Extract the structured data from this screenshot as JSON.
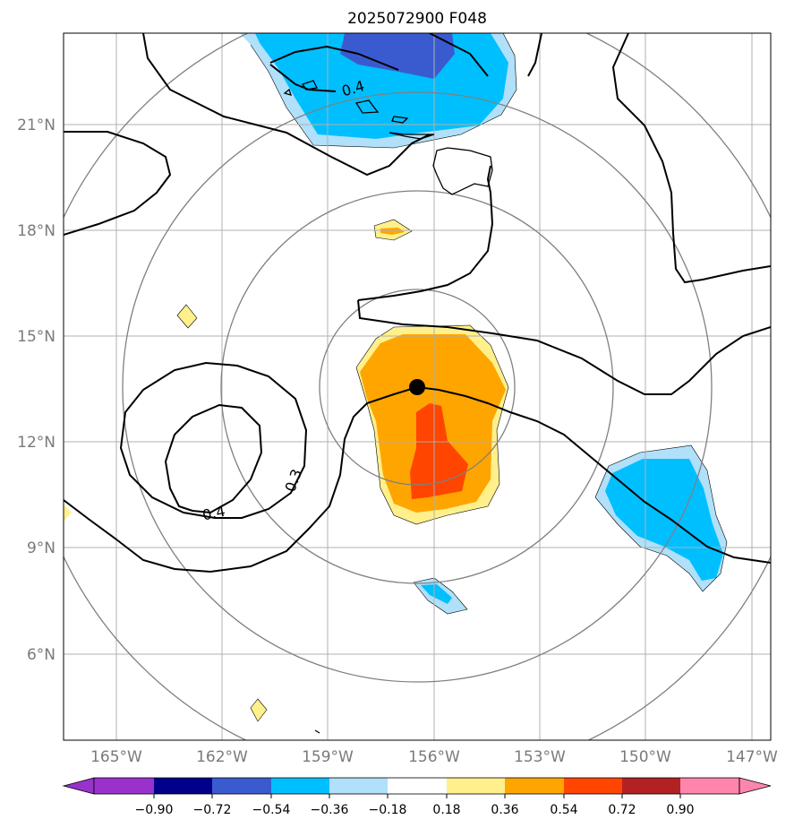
{
  "title": "2025072900 F048",
  "map": {
    "lon_range": [
      -167,
      -146.5
    ],
    "lat_range": [
      3.9,
      24.0
    ],
    "lat_ticks": [
      {
        "value": 6,
        "label": "6°N"
      },
      {
        "value": 9,
        "label": "9°N"
      },
      {
        "value": 12,
        "label": "12°N"
      },
      {
        "value": 15,
        "label": "15°N"
      },
      {
        "value": 18,
        "label": "18°N"
      },
      {
        "value": 21,
        "label": "21°N"
      }
    ],
    "lon_ticks": [
      {
        "value": -165,
        "label": "165°W"
      },
      {
        "value": -162,
        "label": "162°W"
      },
      {
        "value": -159,
        "label": "159°W"
      },
      {
        "value": -156,
        "label": "156°W"
      },
      {
        "value": -153,
        "label": "153°W"
      },
      {
        "value": -150,
        "label": "150°W"
      },
      {
        "value": -147,
        "label": "147°W"
      }
    ],
    "storm_center": {
      "lon": -156.5,
      "lat": 13.5
    },
    "range_rings_deg": [
      2.75,
      5.5,
      8.25,
      11.0
    ],
    "contour_labels": [
      {
        "text": "0.4",
        "lon": -157.2,
        "lat": 19.97
      },
      {
        "text": "0.3",
        "lon": -159.8,
        "lat": 11.5
      },
      {
        "text": "0.4",
        "lon": -162.4,
        "lat": 10.17
      }
    ]
  },
  "colorbar": {
    "colors": [
      "#9932cc",
      "#00008b",
      "#3a5bcf",
      "#00bfff",
      "#b0e0fa",
      "#ffffff",
      "#fff08c",
      "#ffa500",
      "#ff4500",
      "#b22222",
      "#ff85ad"
    ],
    "tick_labels": [
      "−0.90",
      "−0.72",
      "−0.54",
      "−0.36",
      "−0.18",
      "0.18",
      "0.36",
      "0.54",
      "0.72",
      "0.90"
    ]
  }
}
